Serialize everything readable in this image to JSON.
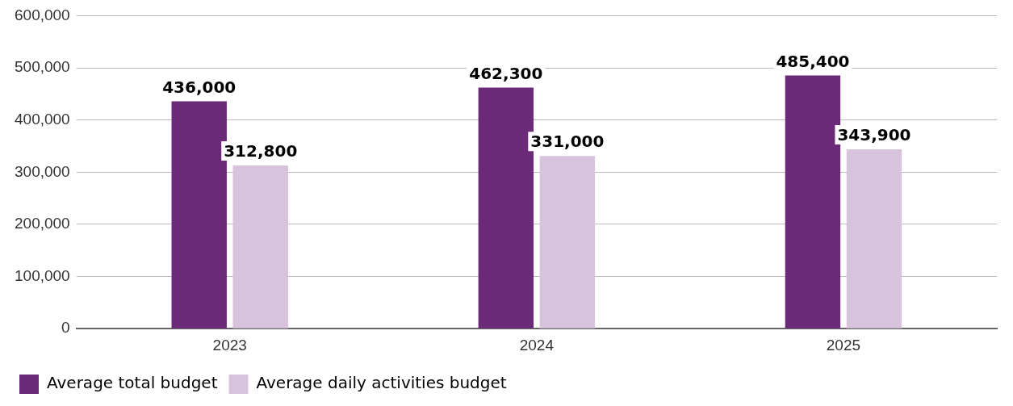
{
  "chart_data": {
    "type": "bar",
    "categories": [
      "2023",
      "2024",
      "2025"
    ],
    "series": [
      {
        "name": "Average total budget",
        "color": "#6b2a77",
        "values": [
          436000,
          462300,
          485400
        ],
        "value_labels": [
          "436,000",
          "462,300",
          "485,400"
        ]
      },
      {
        "name": "Average daily activities budget",
        "color": "#d8c3dc",
        "values": [
          312800,
          331000,
          343900
        ],
        "value_labels": [
          "312,800",
          "331,000",
          "343,900"
        ]
      }
    ],
    "ylim": [
      0,
      600000
    ],
    "yticks": [
      0,
      {
        "value": 100000,
        "label": "100,000"
      },
      {
        "value": 200000,
        "label": "200,000"
      },
      {
        "value": 300000,
        "label": "300,000"
      },
      {
        "value": 400000,
        "label": "400,000"
      },
      {
        "value": 500000,
        "label": "500,000"
      },
      {
        "value": 600000,
        "label": "600,000"
      }
    ],
    "grid": "y",
    "legend": "bottom left"
  }
}
